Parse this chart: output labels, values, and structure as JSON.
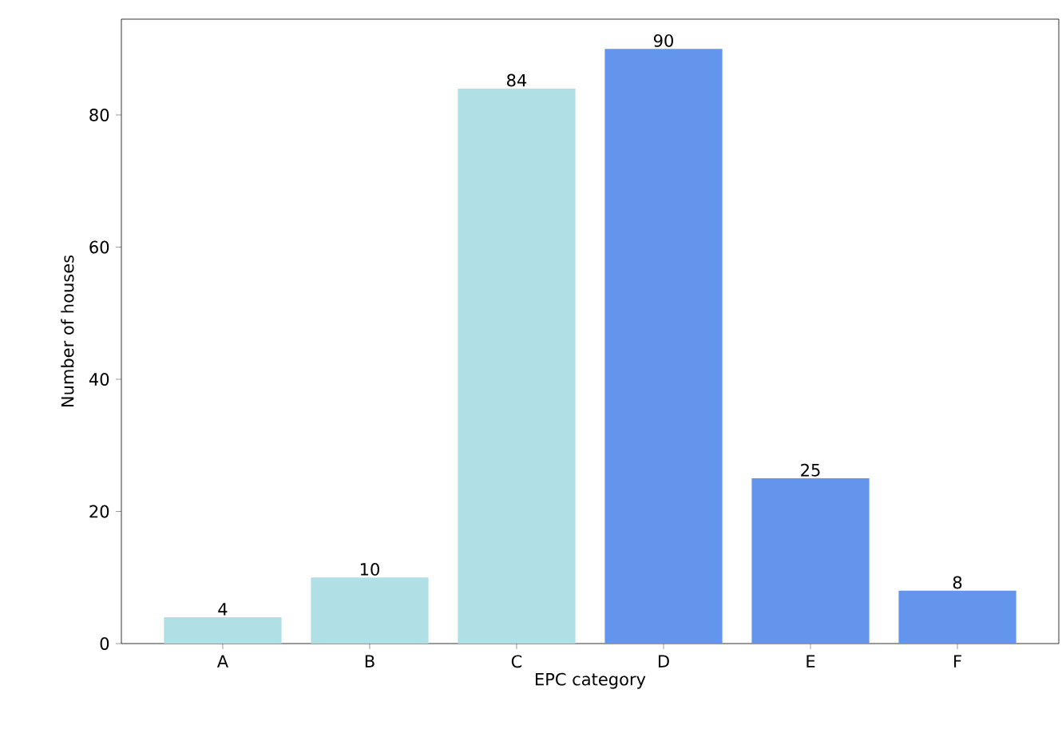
{
  "chart_data": {
    "type": "bar",
    "xlabel": "EPC category",
    "ylabel": "Number of houses",
    "categories": [
      "A",
      "B",
      "C",
      "D",
      "E",
      "F"
    ],
    "values": [
      4,
      10,
      84,
      90,
      25,
      8
    ],
    "colors": [
      "#b0e0e6",
      "#b0e0e6",
      "#b0e0e6",
      "#6495ed",
      "#6495ed",
      "#6495ed"
    ],
    "ylim": [
      0,
      94.5
    ],
    "yticks": [
      0,
      20,
      40,
      60,
      80
    ],
    "data_labels": true,
    "grid": false
  }
}
